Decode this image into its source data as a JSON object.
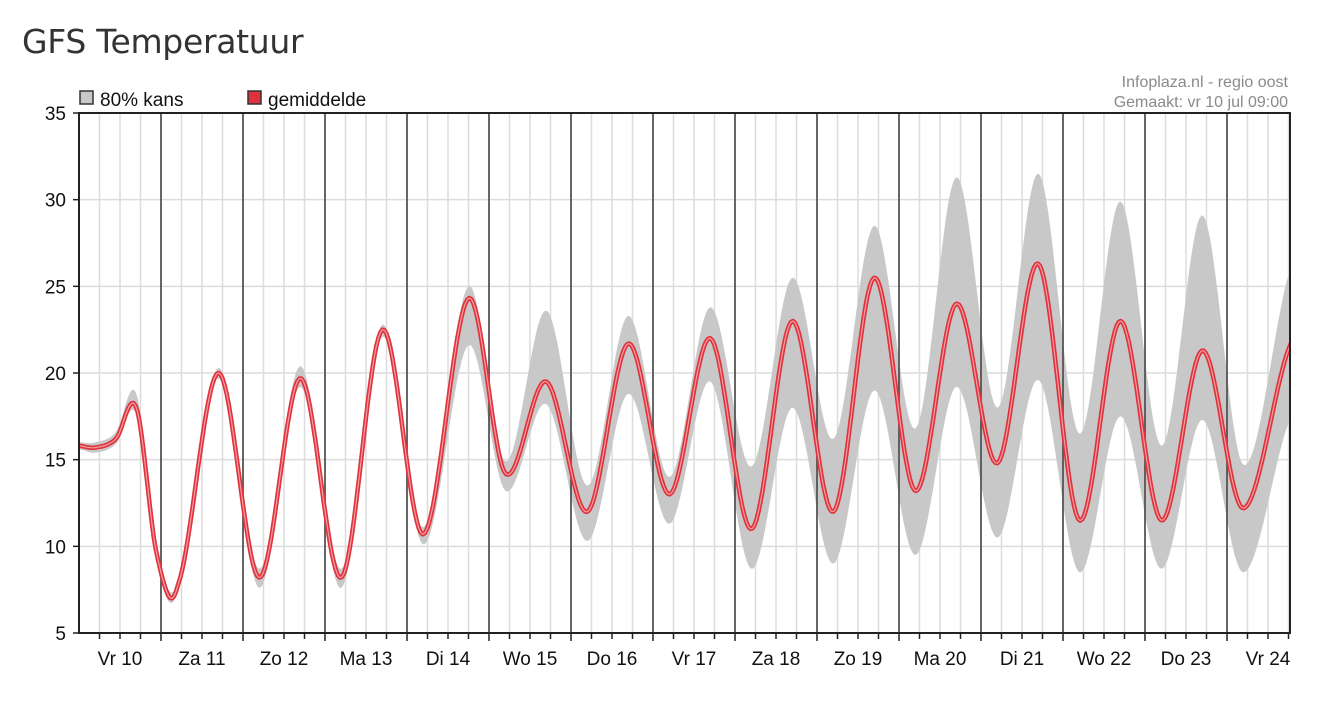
{
  "title": "GFS Temperatuur",
  "credits": {
    "source": "Infoplaza.nl - regio oost",
    "made": "Gemaakt: vr 10 jul 09:00"
  },
  "colors": {
    "band": "#c8c8c8",
    "mean": "#e0323c",
    "mean_highlight": "#f4a0a4",
    "grid_minor": "#dcdcdc",
    "grid_major": "#555555"
  },
  "chart_data": {
    "type": "area",
    "title": "GFS Temperatuur",
    "xlabel": "",
    "ylabel": "",
    "ylim": [
      5,
      35
    ],
    "yticks": [
      5,
      10,
      15,
      20,
      25,
      30,
      35
    ],
    "grid": true,
    "legend": {
      "placement": "top-left",
      "entries": [
        {
          "label": "80% kans",
          "color": "#c8c8c8"
        },
        {
          "label": "gemiddelde",
          "color": "#e0323c"
        }
      ]
    },
    "days": [
      "Vr 10",
      "Za 11",
      "Zo 12",
      "Ma 13",
      "Di 14",
      "Wo 15",
      "Do 16",
      "Vr 17",
      "Za 18",
      "Zo 19",
      "Ma 20",
      "Di 21",
      "Wo 22",
      "Do 23",
      "Vr 24"
    ],
    "x_unit": "days",
    "x_range": [
      0,
      14.8
    ],
    "series": [
      {
        "name": "gemiddelde",
        "x": [
          0,
          0.2,
          0.45,
          0.7,
          0.95,
          1.2,
          1.7,
          2.2,
          2.7,
          3.2,
          3.7,
          4.2,
          4.75,
          5.2,
          5.7,
          6.2,
          6.7,
          7.2,
          7.7,
          8.2,
          8.7,
          9.2,
          9.7,
          10.2,
          10.7,
          11.2,
          11.7,
          12.2,
          12.7,
          13.2,
          13.7,
          14.2,
          14.8
        ],
        "values": [
          15.8,
          15.7,
          16.2,
          18.0,
          9.5,
          7.7,
          20.0,
          8.2,
          19.7,
          8.2,
          22.5,
          10.7,
          24.3,
          14.2,
          19.5,
          12.0,
          21.7,
          13.0,
          22.0,
          11.0,
          23.0,
          12.0,
          25.5,
          13.2,
          24.0,
          14.8,
          26.3,
          11.5,
          23.0,
          11.5,
          21.3,
          12.2,
          21.9
        ]
      },
      {
        "name": "80% kans",
        "x": [
          0,
          0.2,
          0.45,
          0.7,
          0.95,
          1.2,
          1.7,
          2.2,
          2.7,
          3.2,
          3.7,
          4.2,
          4.75,
          5.2,
          5.7,
          6.2,
          6.7,
          7.2,
          7.7,
          8.2,
          8.7,
          9.2,
          9.7,
          10.2,
          10.7,
          11.2,
          11.7,
          12.2,
          12.7,
          13.2,
          13.7,
          14.2,
          14.8
        ],
        "low": [
          15.6,
          15.4,
          15.9,
          17.6,
          9.0,
          7.5,
          19.7,
          7.6,
          19.2,
          7.6,
          22.1,
          10.1,
          21.6,
          13.2,
          18.2,
          10.3,
          18.8,
          11.3,
          19.5,
          8.7,
          18.0,
          9.0,
          19.0,
          9.5,
          19.2,
          10.5,
          19.6,
          8.5,
          17.5,
          8.7,
          17.3,
          8.5,
          17.6
        ],
        "high": [
          16.0,
          16.0,
          16.6,
          18.8,
          10.0,
          8.0,
          20.3,
          8.7,
          20.4,
          8.7,
          22.8,
          11.1,
          25.0,
          14.9,
          23.6,
          13.5,
          23.3,
          14.0,
          23.8,
          14.6,
          25.5,
          16.2,
          28.5,
          16.8,
          31.3,
          18.0,
          31.5,
          16.5,
          29.9,
          15.8,
          29.1,
          14.7,
          26.3
        ]
      }
    ]
  }
}
